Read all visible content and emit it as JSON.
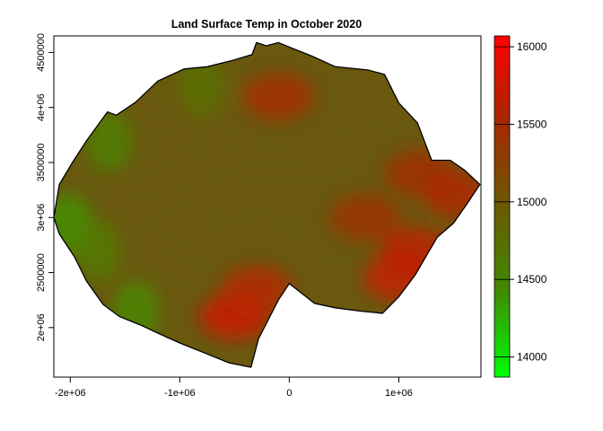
{
  "chart_data": {
    "type": "heatmap",
    "title": "Land Surface Temp in October 2020",
    "xlabel": "",
    "ylabel": "",
    "xlim": [
      -2150000,
      1750000
    ],
    "ylim": [
      1550000,
      4650000
    ],
    "x_ticks": [
      {
        "value": -2000000,
        "label": "-2e+06"
      },
      {
        "value": -1000000,
        "label": "-1e+06"
      },
      {
        "value": 0,
        "label": "0"
      },
      {
        "value": 1000000,
        "label": "1e+06"
      }
    ],
    "y_ticks": [
      {
        "value": 2000000,
        "label": "2e+06"
      },
      {
        "value": 2500000,
        "label": "2500000"
      },
      {
        "value": 3000000,
        "label": "3e+06"
      },
      {
        "value": 3500000,
        "label": "3500000"
      },
      {
        "value": 4000000,
        "label": "4e+06"
      },
      {
        "value": 4500000,
        "label": "4500000"
      }
    ],
    "colorbar": {
      "min": 13870,
      "max": 16070,
      "ticks": [
        14000,
        14500,
        15000,
        15500,
        16000
      ],
      "colors": [
        "#00ff00",
        "#3f8a00",
        "#6a5a00",
        "#a52800",
        "#ff0000"
      ]
    },
    "boundary_outline": [
      [
        -2150000,
        3000000
      ],
      [
        -2100000,
        3300000
      ],
      [
        -1980000,
        3500000
      ],
      [
        -1850000,
        3700000
      ],
      [
        -1660000,
        3960000
      ],
      [
        -1580000,
        3930000
      ],
      [
        -1400000,
        4050000
      ],
      [
        -1200000,
        4240000
      ],
      [
        -960000,
        4350000
      ],
      [
        -750000,
        4370000
      ],
      [
        -510000,
        4430000
      ],
      [
        -340000,
        4480000
      ],
      [
        -300000,
        4590000
      ],
      [
        -210000,
        4560000
      ],
      [
        -100000,
        4590000
      ],
      [
        20000,
        4540000
      ],
      [
        200000,
        4470000
      ],
      [
        420000,
        4370000
      ],
      [
        720000,
        4340000
      ],
      [
        870000,
        4300000
      ],
      [
        1000000,
        4040000
      ],
      [
        1170000,
        3860000
      ],
      [
        1300000,
        3520000
      ],
      [
        1470000,
        3520000
      ],
      [
        1600000,
        3430000
      ],
      [
        1740000,
        3300000
      ],
      [
        1620000,
        3120000
      ],
      [
        1500000,
        2950000
      ],
      [
        1350000,
        2820000
      ],
      [
        1150000,
        2480000
      ],
      [
        1000000,
        2280000
      ],
      [
        850000,
        2130000
      ],
      [
        650000,
        2150000
      ],
      [
        420000,
        2180000
      ],
      [
        230000,
        2220000
      ],
      [
        0,
        2400000
      ],
      [
        -100000,
        2250000
      ],
      [
        -280000,
        1900000
      ],
      [
        -350000,
        1640000
      ],
      [
        -550000,
        1680000
      ],
      [
        -800000,
        1780000
      ],
      [
        -1000000,
        1860000
      ],
      [
        -1200000,
        1950000
      ],
      [
        -1350000,
        2020000
      ],
      [
        -1450000,
        2060000
      ],
      [
        -1550000,
        2100000
      ],
      [
        -1700000,
        2210000
      ],
      [
        -1850000,
        2420000
      ],
      [
        -1960000,
        2640000
      ],
      [
        -2100000,
        2850000
      ]
    ],
    "hot_spots": [
      {
        "x": -500000,
        "y": 2100000,
        "value": 15800
      },
      {
        "x": -300000,
        "y": 2350000,
        "value": 15650
      },
      {
        "x": 1000000,
        "y": 2450000,
        "value": 15750
      },
      {
        "x": 1150000,
        "y": 2700000,
        "value": 15700
      },
      {
        "x": -100000,
        "y": 4100000,
        "value": 15550
      },
      {
        "x": 1200000,
        "y": 3400000,
        "value": 15500
      },
      {
        "x": 1550000,
        "y": 3200000,
        "value": 15600
      },
      {
        "x": 700000,
        "y": 3000000,
        "value": 15450
      }
    ],
    "cool_spots": [
      {
        "x": -2020000,
        "y": 2950000,
        "value": 14300
      },
      {
        "x": -1650000,
        "y": 3700000,
        "value": 14400
      },
      {
        "x": -1400000,
        "y": 2150000,
        "value": 14350
      },
      {
        "x": -800000,
        "y": 4200000,
        "value": 14600
      },
      {
        "x": -1750000,
        "y": 2700000,
        "value": 14450
      }
    ]
  }
}
